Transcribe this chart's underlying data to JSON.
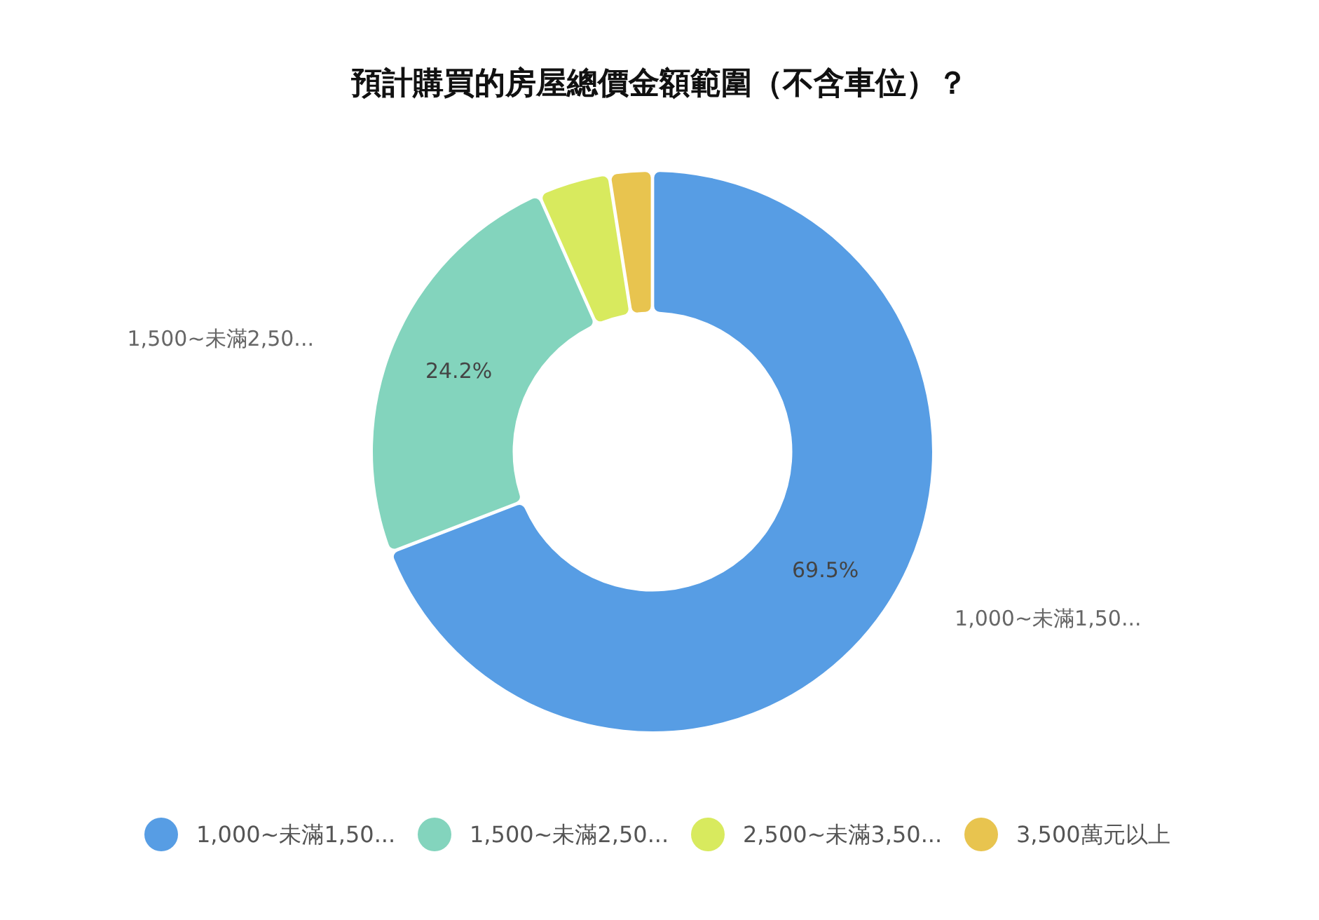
{
  "chart_data": {
    "type": "donut",
    "title": "預計購買的房屋總價金額範圍（不含車位）？",
    "categories": [
      "1,000~未滿1,50...",
      "1,500~未滿2,50...",
      "2,500~未滿3,50...",
      "3,500萬元以上"
    ],
    "values": [
      69.5,
      24.2,
      4.0,
      2.3
    ],
    "colors": [
      "#579de4",
      "#83d4bd",
      "#d8ea5e",
      "#e8c44f"
    ],
    "value_labels": [
      "69.5%",
      "24.2%",
      null,
      null
    ],
    "legend": "bottom"
  }
}
